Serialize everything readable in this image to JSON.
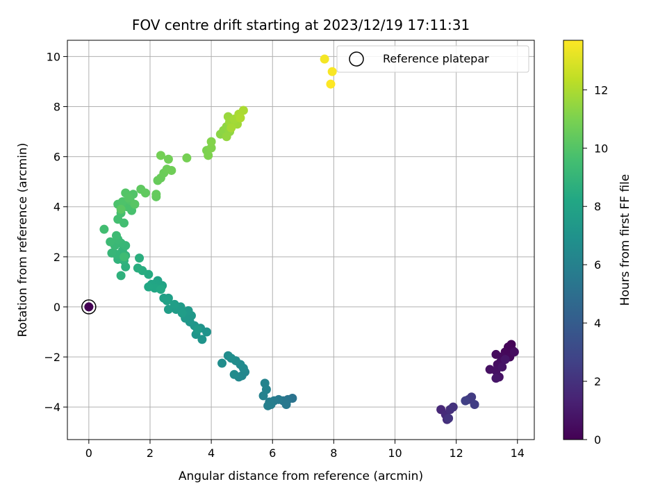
{
  "chart_data": {
    "type": "scatter",
    "title": "FOV centre drift starting at 2023/12/19 17:11:31",
    "xlabel": "Angular distance from reference (arcmin)",
    "ylabel": "Rotation from reference (arcmin)",
    "xlim": [
      -0.7,
      14.55
    ],
    "ylim": [
      -5.3,
      10.65
    ],
    "xticks": [
      0,
      2,
      4,
      6,
      8,
      10,
      12,
      14
    ],
    "yticks": [
      -4,
      -2,
      0,
      2,
      4,
      6,
      8,
      10
    ],
    "grid": true,
    "legend": {
      "position": "top-right",
      "entries": [
        "Reference platepar"
      ]
    },
    "colorbar": {
      "label": "Hours from first FF file",
      "min": 0,
      "max": 13.7,
      "ticks": [
        0,
        2,
        4,
        6,
        8,
        10,
        12
      ],
      "colormap": "viridis"
    },
    "reference_point": {
      "x": 0,
      "y": 0,
      "label": "Reference platepar"
    },
    "points": [
      [
        0.0,
        0.0,
        0.0
      ],
      [
        13.8,
        -1.5,
        0.1
      ],
      [
        13.7,
        -1.6,
        0.15
      ],
      [
        13.85,
        -1.75,
        0.2
      ],
      [
        13.6,
        -1.8,
        0.25
      ],
      [
        13.75,
        -2.0,
        0.3
      ],
      [
        13.5,
        -2.0,
        0.35
      ],
      [
        13.3,
        -1.9,
        0.4
      ],
      [
        13.9,
        -1.8,
        0.45
      ],
      [
        13.45,
        -2.2,
        0.5
      ],
      [
        13.35,
        -2.3,
        0.55
      ],
      [
        13.1,
        -2.5,
        0.6
      ],
      [
        13.3,
        -2.55,
        0.65
      ],
      [
        13.4,
        -2.8,
        0.7
      ],
      [
        13.5,
        -2.4,
        0.75
      ],
      [
        13.6,
        -2.1,
        0.8
      ],
      [
        13.3,
        -2.85,
        0.85
      ],
      [
        11.5,
        -4.1,
        1.6
      ],
      [
        11.65,
        -4.3,
        1.7
      ],
      [
        11.7,
        -4.5,
        1.8
      ],
      [
        11.8,
        -4.1,
        1.9
      ],
      [
        11.9,
        -4.0,
        2.0
      ],
      [
        11.75,
        -4.45,
        2.1
      ],
      [
        12.4,
        -3.7,
        2.3
      ],
      [
        12.5,
        -3.6,
        2.4
      ],
      [
        12.6,
        -3.9,
        2.5
      ],
      [
        12.3,
        -3.75,
        2.6
      ],
      [
        6.65,
        -3.65,
        5.2
      ],
      [
        6.5,
        -3.7,
        5.3
      ],
      [
        6.35,
        -3.75,
        5.4
      ],
      [
        6.45,
        -3.9,
        5.5
      ],
      [
        6.2,
        -3.7,
        5.6
      ],
      [
        6.05,
        -3.75,
        5.7
      ],
      [
        5.9,
        -3.8,
        5.8
      ],
      [
        5.95,
        -3.9,
        5.85
      ],
      [
        5.85,
        -3.95,
        5.9
      ],
      [
        5.7,
        -3.55,
        6.0
      ],
      [
        5.8,
        -3.3,
        6.05
      ],
      [
        5.75,
        -3.05,
        6.1
      ],
      [
        5.1,
        -2.6,
        6.3
      ],
      [
        5.0,
        -2.75,
        6.35
      ],
      [
        4.9,
        -2.8,
        6.4
      ],
      [
        5.05,
        -2.45,
        6.45
      ],
      [
        4.95,
        -2.3,
        6.5
      ],
      [
        4.75,
        -2.7,
        6.55
      ],
      [
        4.8,
        -2.15,
        6.6
      ],
      [
        4.55,
        -1.95,
        6.65
      ],
      [
        4.35,
        -2.25,
        6.7
      ],
      [
        4.65,
        -2.05,
        6.75
      ],
      [
        3.85,
        -1.0,
        7.0
      ],
      [
        3.65,
        -0.85,
        7.05
      ],
      [
        3.7,
        -1.3,
        7.1
      ],
      [
        3.5,
        -1.1,
        7.15
      ],
      [
        3.45,
        -0.75,
        7.2
      ],
      [
        3.3,
        -0.6,
        7.25
      ],
      [
        3.35,
        -0.35,
        7.3
      ],
      [
        3.15,
        -0.45,
        7.35
      ],
      [
        3.25,
        -0.15,
        7.4
      ],
      [
        3.55,
        -0.9,
        7.45
      ],
      [
        3.0,
        0.0,
        7.5
      ],
      [
        2.85,
        -0.1,
        7.55
      ],
      [
        3.05,
        -0.25,
        7.6
      ],
      [
        2.6,
        -0.1,
        7.65
      ],
      [
        2.8,
        0.1,
        7.7
      ],
      [
        2.6,
        0.35,
        7.75
      ],
      [
        2.45,
        0.35,
        7.8
      ],
      [
        2.55,
        0.25,
        7.85
      ],
      [
        2.3,
        0.8,
        7.9
      ],
      [
        2.25,
        1.05,
        7.95
      ],
      [
        2.4,
        0.85,
        8.0
      ],
      [
        2.2,
        0.95,
        8.05
      ],
      [
        2.05,
        0.9,
        8.1
      ],
      [
        2.15,
        0.75,
        8.15
      ],
      [
        1.95,
        0.8,
        8.2
      ],
      [
        2.35,
        0.7,
        8.25
      ],
      [
        1.95,
        1.3,
        8.4
      ],
      [
        1.75,
        1.45,
        8.5
      ],
      [
        1.6,
        1.55,
        8.55
      ],
      [
        1.65,
        1.95,
        8.6
      ],
      [
        1.2,
        1.6,
        8.7
      ],
      [
        1.05,
        1.25,
        8.75
      ],
      [
        1.15,
        1.85,
        8.8
      ],
      [
        0.95,
        1.9,
        8.85
      ],
      [
        1.2,
        2.05,
        8.9
      ],
      [
        1.1,
        2.25,
        8.95
      ],
      [
        0.9,
        2.1,
        9.0
      ],
      [
        0.75,
        2.15,
        9.05
      ],
      [
        1.2,
        2.45,
        9.1
      ],
      [
        1.05,
        2.55,
        9.15
      ],
      [
        0.85,
        2.45,
        9.2
      ],
      [
        0.95,
        2.7,
        9.25
      ],
      [
        0.7,
        2.6,
        9.3
      ],
      [
        0.9,
        2.85,
        9.35
      ],
      [
        1.15,
        2.0,
        9.4
      ],
      [
        0.5,
        3.1,
        9.5
      ],
      [
        1.15,
        3.35,
        9.55
      ],
      [
        0.95,
        3.5,
        9.6
      ],
      [
        1.05,
        3.75,
        9.65
      ],
      [
        1.4,
        3.85,
        9.7
      ],
      [
        1.25,
        4.0,
        9.75
      ],
      [
        0.95,
        4.1,
        9.8
      ],
      [
        1.1,
        4.2,
        9.85
      ],
      [
        1.35,
        4.25,
        9.9
      ],
      [
        1.45,
        4.5,
        9.95
      ],
      [
        1.2,
        4.55,
        10.0
      ],
      [
        1.3,
        4.35,
        10.05
      ],
      [
        1.5,
        4.1,
        10.1
      ],
      [
        1.05,
        3.9,
        10.15
      ],
      [
        1.7,
        4.7,
        10.3
      ],
      [
        1.85,
        4.55,
        10.35
      ],
      [
        2.2,
        4.4,
        10.4
      ],
      [
        2.2,
        4.5,
        10.45
      ],
      [
        2.25,
        5.05,
        10.5
      ],
      [
        2.35,
        5.15,
        10.55
      ],
      [
        2.45,
        5.35,
        10.6
      ],
      [
        2.55,
        5.5,
        10.65
      ],
      [
        2.7,
        5.45,
        10.7
      ],
      [
        2.6,
        5.9,
        10.75
      ],
      [
        2.35,
        6.05,
        10.8
      ],
      [
        3.2,
        5.95,
        10.85
      ],
      [
        3.85,
        6.25,
        11.0
      ],
      [
        3.9,
        6.05,
        11.05
      ],
      [
        4.0,
        6.35,
        11.1
      ],
      [
        4.0,
        6.6,
        11.15
      ],
      [
        4.3,
        6.9,
        11.3
      ],
      [
        4.4,
        7.05,
        11.35
      ],
      [
        4.5,
        7.2,
        11.4
      ],
      [
        4.6,
        7.0,
        11.45
      ],
      [
        4.5,
        6.8,
        11.5
      ],
      [
        4.7,
        7.35,
        11.55
      ],
      [
        4.55,
        7.6,
        11.6
      ],
      [
        4.6,
        7.4,
        11.65
      ],
      [
        4.8,
        7.5,
        11.7
      ],
      [
        4.85,
        7.3,
        11.75
      ],
      [
        4.75,
        7.5,
        11.8
      ],
      [
        4.65,
        7.15,
        11.85
      ],
      [
        4.9,
        7.7,
        11.9
      ],
      [
        5.05,
        7.85,
        11.95
      ],
      [
        4.95,
        7.55,
        12.0
      ],
      [
        7.7,
        9.9,
        13.5
      ],
      [
        7.95,
        9.4,
        13.6
      ],
      [
        7.9,
        8.9,
        13.7
      ]
    ]
  }
}
